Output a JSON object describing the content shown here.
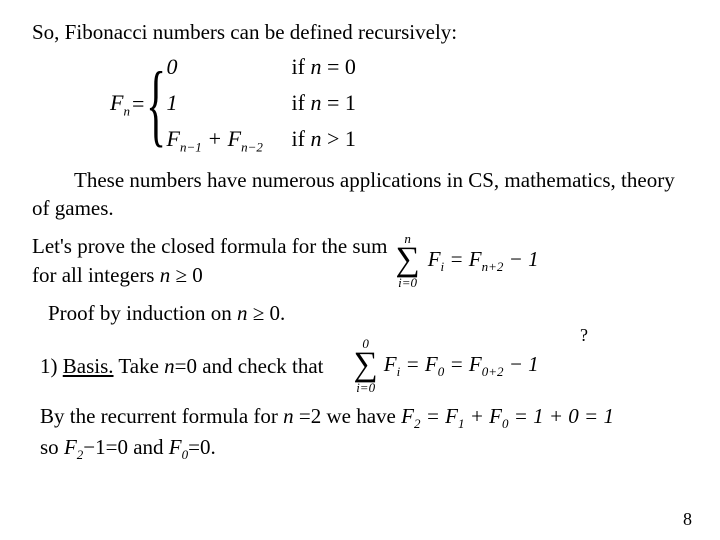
{
  "line1": "So, Fibonacci numbers can be defined recursively:",
  "piecewise": {
    "lhs_F": "F",
    "lhs_sub": "n",
    "eq": " = ",
    "cases": [
      {
        "val_plain": "0",
        "cond_prefix": "if ",
        "cond_var": "n",
        "cond_rest": " = 0"
      },
      {
        "val_plain": "1",
        "cond_prefix": "if ",
        "cond_var": "n",
        "cond_rest": " = 1"
      },
      {
        "val_html": "F<sub class=\"sub\">n−1</sub> + F<sub class=\"sub\">n−2</sub>",
        "cond_prefix": "if ",
        "cond_var": "n",
        "cond_rest": " > 1"
      }
    ]
  },
  "para_apps": "These numbers have numerous applications in CS, mathematics, theory of games.",
  "closed": {
    "text1": "Let's prove the closed formula for the sum",
    "text2_a": "for all integers ",
    "text2_var": "n",
    "text2_b": " ≥ 0",
    "sum_top": "n",
    "sum_bot": "i=0",
    "sum_body": "F<sub class=\"sub\">i</sub> = F<sub class=\"sub\">n+2</sub> − 1"
  },
  "proof_intro_a": "Proof by induction on ",
  "proof_intro_var": "n",
  "proof_intro_b": " ≥ 0.",
  "basis": {
    "label": "1) ",
    "basis_word": "Basis.",
    "text_a": "  Take ",
    "text_var": "n",
    "text_b": "=0 and check that",
    "sum_top": "0",
    "sum_bot": "i=0",
    "sum_body": "F<sub class=\"sub\">i</sub> = F<sub class=\"sub\">0</sub> = F<sub class=\"sub\">0+2</sub> − 1",
    "qmark": "?"
  },
  "recurrent": {
    "line1_a": "By the recurrent formula for  ",
    "line1_var": "n",
    "line1_b": " =2 we have  ",
    "line1_formula": "F<sub class=\"sub\">2</sub> = F<sub class=\"sub\">1</sub> + F<sub class=\"sub\">0</sub> = 1 + 0 = 1",
    "line2_a": "so ",
    "line2_f1": "F<sub class=\"sub\">2</sub>",
    "line2_mid": "−1=0 and ",
    "line2_f2": "F<sub class=\"sub\">0</sub>",
    "line2_end": "=0."
  },
  "page": "8"
}
